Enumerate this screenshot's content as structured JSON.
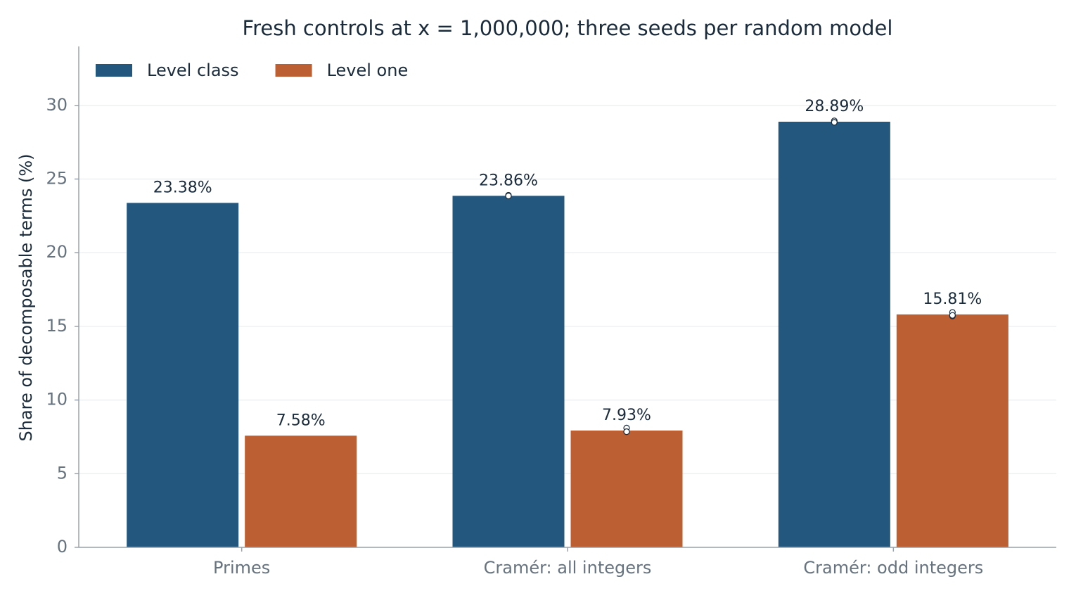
{
  "chart_data": {
    "type": "bar",
    "title": "Fresh controls at x = 1,000,000; three seeds per random model",
    "y_label": "Share of decomposable terms (%)",
    "categories": [
      "Primes",
      "Cramér: all integers",
      "Cramér: odd integers"
    ],
    "series": [
      {
        "name": "Level class",
        "color": "#24577e",
        "values": [
          23.38,
          23.86,
          28.89
        ],
        "value_labels": [
          "23.38%",
          "23.86%",
          "28.89%"
        ],
        "seeds": [
          null,
          [
            23.9,
            23.85,
            23.85
          ],
          [
            28.95,
            28.85,
            28.85
          ]
        ]
      },
      {
        "name": "Level one",
        "color": "#bc5f32",
        "values": [
          7.58,
          7.93,
          15.81
        ],
        "value_labels": [
          "7.58%",
          "7.93%",
          "15.81%"
        ],
        "seeds": [
          null,
          [
            8.1,
            7.85,
            7.85
          ],
          [
            15.95,
            15.7,
            15.75
          ]
        ]
      }
    ],
    "ylim": [
      0,
      34
    ],
    "yticks": [
      0,
      5,
      10,
      15,
      20,
      25,
      30
    ],
    "grid": true,
    "legend": "upper-left"
  }
}
